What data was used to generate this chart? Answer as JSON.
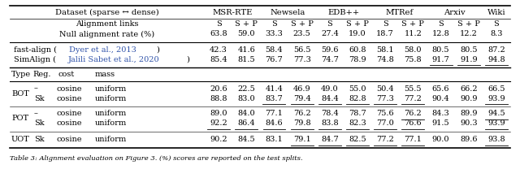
{
  "dataset_label": "Dataset (sparse ↔ dense)",
  "dataset_sections": [
    [
      "MSR-RTE",
      0,
      1
    ],
    [
      "Newsela",
      2,
      3
    ],
    [
      "EDB++",
      4,
      5
    ],
    [
      "MTRef",
      6,
      7
    ],
    [
      "Arxiv",
      8,
      9
    ],
    [
      "Wiki",
      10,
      10
    ]
  ],
  "align_links_label": "Alignment links",
  "null_label": "Null alignment rate (%)",
  "col_headers": [
    "S",
    "S + P",
    "S",
    "S + P",
    "S",
    "S + P",
    "S",
    "S + P",
    "S",
    "S + P",
    "S"
  ],
  "null_vals": [
    "63.8",
    "59.0",
    "33.3",
    "23.5",
    "27.4",
    "19.0",
    "18.7",
    "11.2",
    "12.8",
    "12.2",
    "8.3"
  ],
  "baselines": [
    {
      "name_plain": "fast-align",
      "name_cite": "Dyer et al., 2013",
      "values": [
        "42.3",
        "41.6",
        "58.4",
        "56.5",
        "59.6",
        "60.8",
        "58.1",
        "58.0",
        "80.5",
        "80.5",
        "87.2"
      ],
      "underlined": []
    },
    {
      "name_plain": "SimAlign",
      "name_cite": "Jalili Sabet et al., 2020",
      "values": [
        "85.4",
        "81.5",
        "76.7",
        "77.3",
        "74.7",
        "78.9",
        "74.8",
        "75.8",
        "91.7",
        "91.9",
        "94.8"
      ],
      "underlined": [
        8,
        9,
        10
      ]
    }
  ],
  "type_header": [
    "Type",
    "Reg.",
    "cost",
    "mass"
  ],
  "method_rows": [
    {
      "type": "BOT",
      "reg": "–",
      "cost": "cosine",
      "mass": "uniform",
      "values": [
        "20.6",
        "22.5",
        "41.4",
        "46.9",
        "49.0",
        "55.0",
        "50.4",
        "55.5",
        "65.6",
        "66.2",
        "66.5"
      ],
      "underlined": []
    },
    {
      "type": "BOT",
      "reg": "Sk",
      "cost": "cosine",
      "mass": "uniform",
      "values": [
        "88.8",
        "83.0",
        "83.7",
        "79.4",
        "84.4",
        "82.8",
        "77.3",
        "77.2",
        "90.4",
        "90.9",
        "93.9"
      ],
      "underlined": [
        2,
        3,
        4,
        5,
        6,
        7,
        10
      ]
    },
    {
      "type": "POT",
      "reg": "–",
      "cost": "cosine",
      "mass": "uniform",
      "values": [
        "89.0",
        "84.0",
        "77.1",
        "76.2",
        "78.4",
        "78.7",
        "75.6",
        "76.2",
        "84.3",
        "89.9",
        "94.5"
      ],
      "underlined": [
        7,
        10
      ]
    },
    {
      "type": "POT",
      "reg": "Sk",
      "cost": "cosine",
      "mass": "uniform",
      "values": [
        "92.2",
        "86.4",
        "84.6",
        "79.8",
        "83.8",
        "82.3",
        "77.0",
        "76.6",
        "91.5",
        "90.3",
        "93.9"
      ],
      "underlined": [
        0,
        1,
        2,
        3,
        4,
        5,
        6,
        7,
        10
      ]
    },
    {
      "type": "UOT",
      "reg": "Sk",
      "cost": "cosine",
      "mass": "uniform",
      "values": [
        "90.2",
        "84.5",
        "83.1",
        "79.1",
        "84.7",
        "82.5",
        "77.2",
        "77.1",
        "90.0",
        "89.6",
        "93.8"
      ],
      "underlined": [
        3,
        4,
        5,
        6,
        7,
        10
      ]
    }
  ],
  "cite_color": "#3355aa",
  "fs": 7.0,
  "fs_hdr": 7.2,
  "fs_cap": 6.0,
  "caption": "Table 3: Alignment evaluation on Figure 3. (%) scores are reported on the test splits."
}
